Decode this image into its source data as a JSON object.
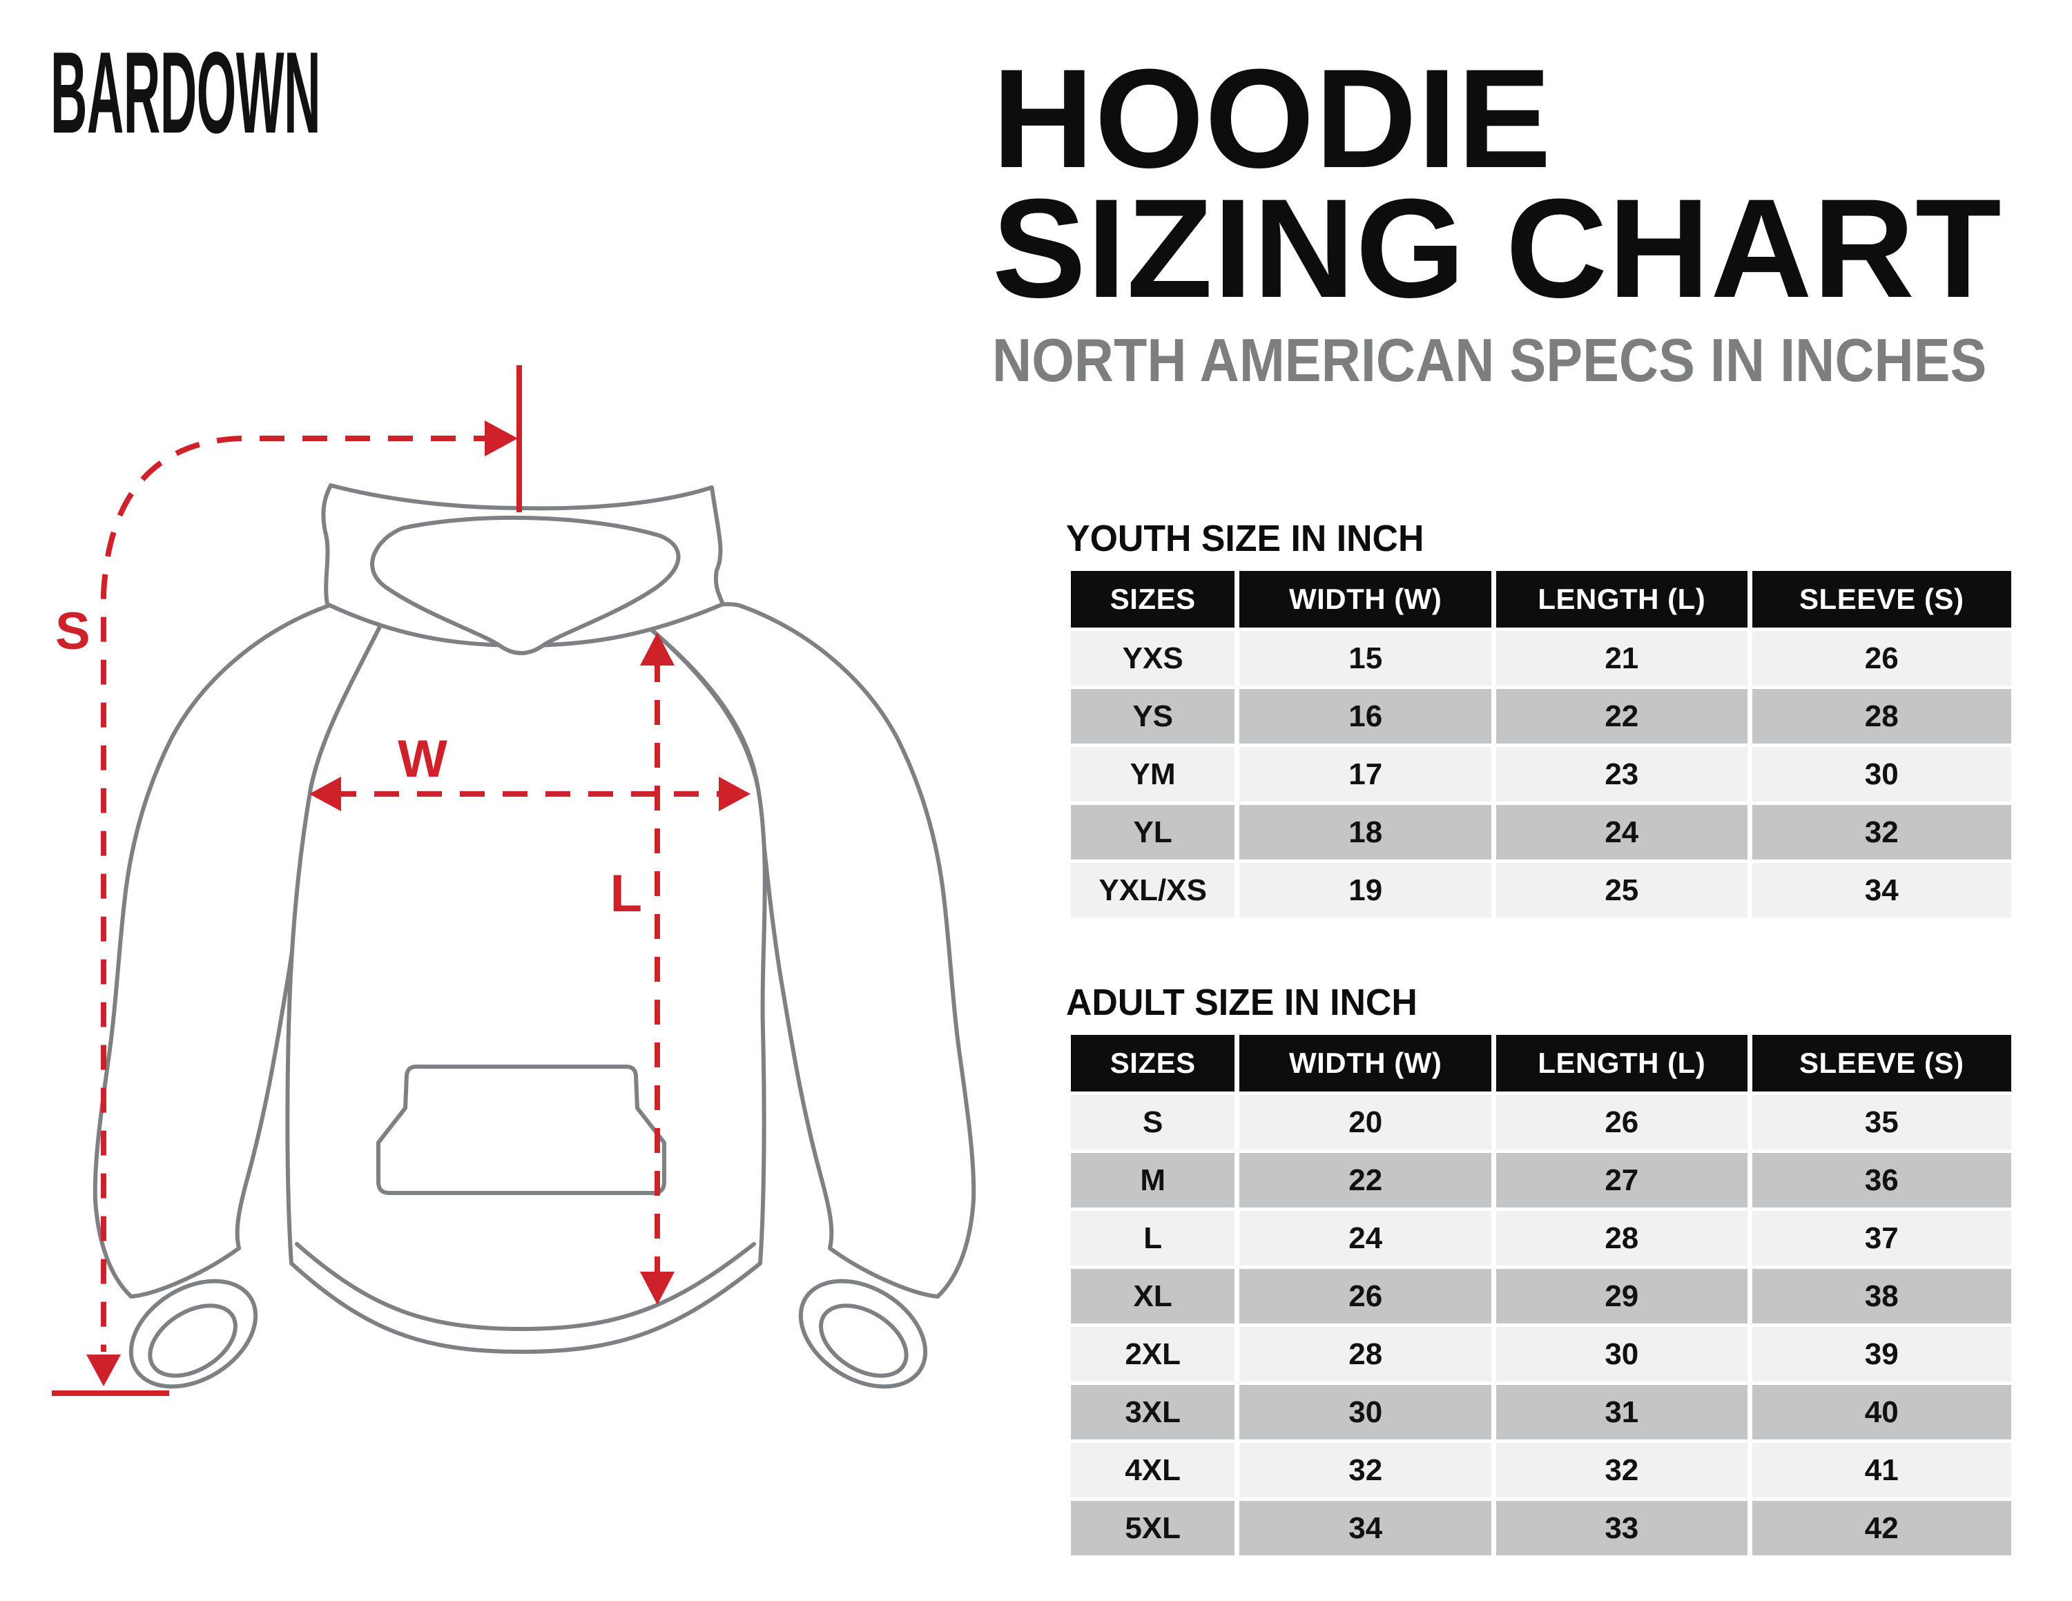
{
  "brand": {
    "logo_text": "BARDOWN"
  },
  "header": {
    "title_line1": "HOODIE",
    "title_line2": "SIZING CHART",
    "subtitle": "NORTH AMERICAN SPECS IN INCHES"
  },
  "diagram": {
    "sleeve_label": "S",
    "width_label": "W",
    "length_label": "L",
    "accent_color": "#ce2129",
    "outline_color": "#7e8083"
  },
  "youth_table": {
    "heading": "YOUTH SIZE IN INCH",
    "columns": [
      "SIZES",
      "WIDTH (W)",
      "LENGTH (L)",
      "SLEEVE (S)"
    ],
    "rows": [
      {
        "size": "YXS",
        "width": "15",
        "length": "21",
        "sleeve": "26"
      },
      {
        "size": "YS",
        "width": "16",
        "length": "22",
        "sleeve": "28"
      },
      {
        "size": "YM",
        "width": "17",
        "length": "23",
        "sleeve": "30"
      },
      {
        "size": "YL",
        "width": "18",
        "length": "24",
        "sleeve": "32"
      },
      {
        "size": "YXL/XS",
        "width": "19",
        "length": "25",
        "sleeve": "34"
      }
    ]
  },
  "adult_table": {
    "heading": "ADULT SIZE IN INCH",
    "columns": [
      "SIZES",
      "WIDTH (W)",
      "LENGTH (L)",
      "SLEEVE (S)"
    ],
    "rows": [
      {
        "size": "S",
        "width": "20",
        "length": "26",
        "sleeve": "35"
      },
      {
        "size": "M",
        "width": "22",
        "length": "27",
        "sleeve": "36"
      },
      {
        "size": "L",
        "width": "24",
        "length": "28",
        "sleeve": "37"
      },
      {
        "size": "XL",
        "width": "26",
        "length": "29",
        "sleeve": "38"
      },
      {
        "size": "2XL",
        "width": "28",
        "length": "30",
        "sleeve": "39"
      },
      {
        "size": "3XL",
        "width": "30",
        "length": "31",
        "sleeve": "40"
      },
      {
        "size": "4XL",
        "width": "32",
        "length": "32",
        "sleeve": "41"
      },
      {
        "size": "5XL",
        "width": "34",
        "length": "33",
        "sleeve": "42"
      }
    ]
  }
}
